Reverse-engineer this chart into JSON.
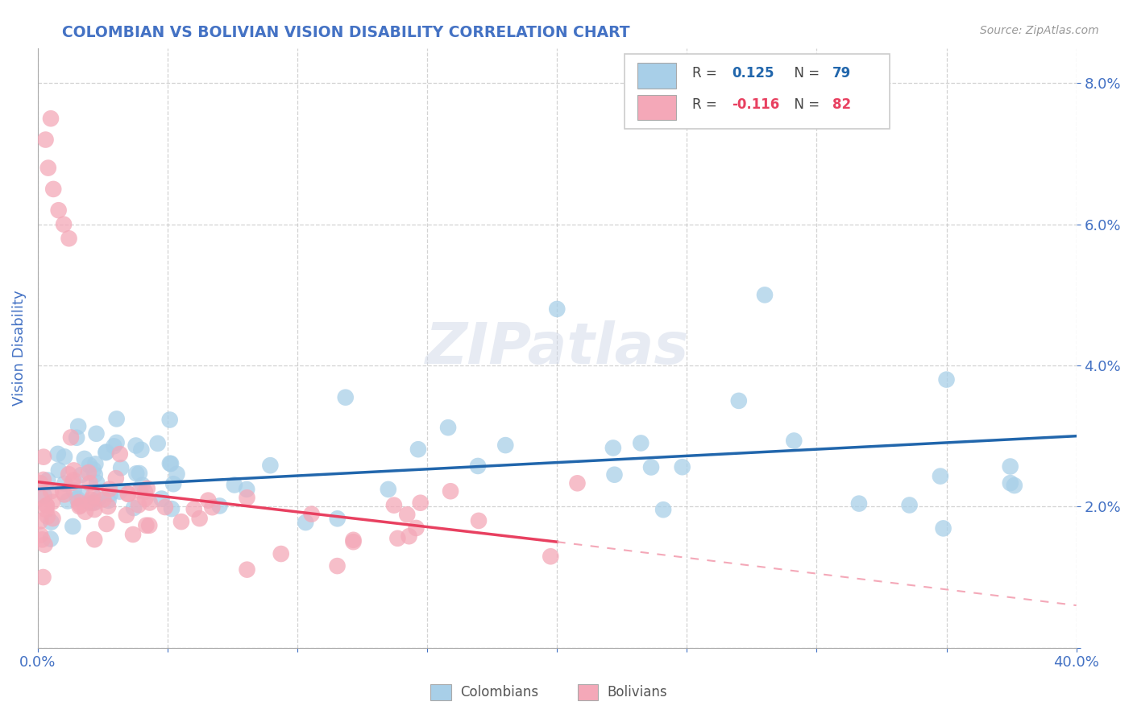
{
  "title": "COLOMBIAN VS BOLIVIAN VISION DISABILITY CORRELATION CHART",
  "source": "Source: ZipAtlas.com",
  "ylabel": "Vision Disability",
  "xlim": [
    0.0,
    0.4
  ],
  "ylim": [
    0.0,
    0.085
  ],
  "colombian_color": "#a8cfe8",
  "bolivian_color": "#f4a8b8",
  "regression_colombian_color": "#2166ac",
  "regression_bolivian_color": "#e84060",
  "regression_bolivian_dash_color": "#f4a8b8",
  "title_color": "#4472c4",
  "axis_color": "#4472c4",
  "watermark": "ZIPatlas",
  "background_color": "#ffffff",
  "r_colombian": "0.125",
  "n_colombian": "79",
  "r_bolivian": "-0.116",
  "n_bolivian": "82"
}
